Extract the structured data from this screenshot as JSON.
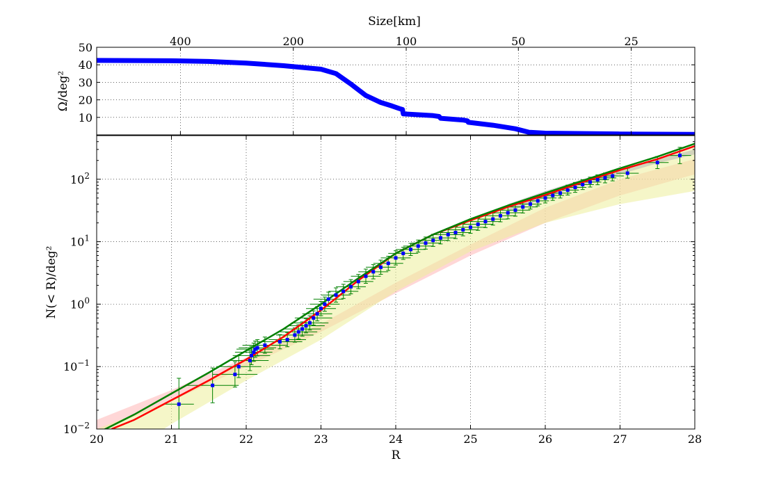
{
  "chart_data": [
    {
      "type": "line",
      "top_axis_label": "Size[km]",
      "top_tick_labels": [
        "400",
        "200",
        "100",
        "50",
        "25"
      ],
      "top_tick_positions_R": [
        21.12,
        22.63,
        24.14,
        25.64,
        27.15
      ],
      "ylabel": "Ω/deg²",
      "ylim": [
        0,
        50
      ],
      "y_ticks": [
        10,
        20,
        30,
        40,
        50
      ],
      "xlim": [
        20,
        28
      ],
      "grid": true,
      "series": [
        {
          "color": "#0000ff",
          "x": [
            20.0,
            21.0,
            21.5,
            22.0,
            22.5,
            23.0,
            23.2,
            23.4,
            23.6,
            23.8,
            23.95,
            24.05,
            24.09,
            24.1,
            24.5,
            24.58,
            24.6,
            24.9,
            24.96,
            24.97,
            25.3,
            25.6,
            25.78,
            26.0,
            27.0,
            28.0
          ],
          "y": [
            42.5,
            42.3,
            41.9,
            41.0,
            39.5,
            37.5,
            35.0,
            29.0,
            22.5,
            18.5,
            16.5,
            15.0,
            14.5,
            12.0,
            11.0,
            10.5,
            9.5,
            8.5,
            8.0,
            7.2,
            5.5,
            3.5,
            1.5,
            1.0,
            0.5,
            0.3
          ]
        }
      ]
    },
    {
      "type": "line",
      "xlabel": "R",
      "ylabel": "N(< R)/deg²",
      "xlim": [
        20,
        28
      ],
      "ylim": [
        0.01,
        500
      ],
      "yscale": "log",
      "x_ticks": [
        "20",
        "21",
        "22",
        "23",
        "24",
        "25",
        "26",
        "27",
        "28"
      ],
      "y_ticks": [
        0.01,
        0.1,
        1,
        10,
        100
      ],
      "y_tick_mantissa": "10",
      "y_tick_exponents": [
        "−2",
        "−1",
        "0",
        "1",
        "2"
      ],
      "grid": true,
      "bands": [
        {
          "color": "#ffb6b6",
          "opacity": 0.55,
          "x": [
            20,
            21,
            22,
            23,
            24,
            25,
            26,
            27,
            28
          ],
          "lower": [
            0.009,
            0.028,
            0.1,
            0.36,
            1.5,
            6,
            20,
            55,
            120
          ],
          "upper": [
            0.014,
            0.042,
            0.14,
            0.48,
            2.2,
            9,
            35,
            100,
            210
          ]
        },
        {
          "color": "#ecee9a",
          "opacity": 0.55,
          "x": [
            20,
            21,
            22,
            23,
            24,
            25,
            26,
            27,
            28
          ],
          "lower": [
            0.002,
            0.012,
            0.06,
            0.27,
            1.6,
            7,
            20,
            40,
            65
          ]
        },
        {
          "color": "#aaaaaa",
          "opacity": 0.45,
          "x": [
            25.5,
            26,
            26.5,
            27,
            27.5,
            28
          ],
          "lower": [
            30,
            50,
            80,
            120,
            180,
            250
          ],
          "upper": [
            40,
            65,
            100,
            150,
            210,
            300
          ]
        }
      ],
      "series": [
        {
          "color": "#ff0000",
          "x": [
            20.2,
            20.5,
            21.0,
            21.5,
            22.0,
            22.5,
            23.0,
            23.5,
            24.0,
            24.5,
            25.0,
            25.5,
            26.0,
            26.5,
            27.0,
            27.5,
            28.0
          ],
          "y": [
            0.01,
            0.014,
            0.029,
            0.06,
            0.13,
            0.3,
            0.8,
            2.4,
            6.5,
            13,
            22,
            36,
            56,
            90,
            140,
            210,
            340
          ]
        },
        {
          "color": "#008000",
          "x": [
            20.0,
            20.5,
            21.0,
            21.5,
            22.0,
            22.5,
            23.0,
            23.5,
            24.0,
            24.5,
            25.0,
            25.5,
            26.0,
            26.5,
            27.0,
            27.5,
            28.0
          ],
          "y": [
            0.0085,
            0.017,
            0.037,
            0.08,
            0.18,
            0.4,
            1.0,
            2.6,
            6.5,
            13,
            23,
            38,
            60,
            95,
            150,
            230,
            370
          ]
        }
      ],
      "points": {
        "color": "#0000ff",
        "errorbar_color": "#008000",
        "x": [
          21.1,
          21.55,
          21.85,
          21.9,
          22.05,
          22.07,
          22.1,
          22.12,
          22.15,
          22.25,
          22.45,
          22.55,
          22.65,
          22.7,
          22.75,
          22.8,
          22.85,
          22.9,
          22.95,
          23.0,
          23.05,
          23.1,
          23.2,
          23.3,
          23.4,
          23.5,
          23.6,
          23.7,
          23.8,
          23.9,
          24.0,
          24.1,
          24.2,
          24.3,
          24.4,
          24.5,
          24.6,
          24.7,
          24.8,
          24.9,
          25.0,
          25.1,
          25.2,
          25.3,
          25.4,
          25.5,
          25.6,
          25.7,
          25.8,
          25.9,
          26.0,
          26.1,
          26.2,
          26.3,
          26.4,
          26.5,
          26.6,
          26.7,
          26.8,
          26.9,
          27.1,
          27.5,
          27.8
        ],
        "y": [
          0.025,
          0.05,
          0.075,
          0.1,
          0.125,
          0.15,
          0.17,
          0.19,
          0.2,
          0.22,
          0.25,
          0.27,
          0.32,
          0.36,
          0.4,
          0.45,
          0.5,
          0.6,
          0.7,
          0.85,
          1.0,
          1.2,
          1.4,
          1.6,
          1.9,
          2.3,
          2.8,
          3.3,
          3.9,
          4.5,
          5.5,
          6.5,
          7.5,
          8.5,
          9.5,
          10.5,
          11.5,
          13,
          14,
          15.5,
          17,
          19,
          21,
          23,
          26,
          29,
          32,
          36,
          40,
          45,
          50,
          55,
          60,
          67,
          74,
          82,
          90,
          98,
          105,
          113,
          125,
          185,
          240
        ],
        "xerr": [
          0.2,
          0.35,
          0.3,
          0.3,
          0.25,
          0.25,
          0.25,
          0.25,
          0.25,
          0.3,
          0.3,
          0.25,
          0.25,
          0.25,
          0.25,
          0.25,
          0.25,
          0.25,
          0.2,
          0.2,
          0.2,
          0.2,
          0.2,
          0.2,
          0.2,
          0.2,
          0.2,
          0.2,
          0.2,
          0.2,
          0.2,
          0.2,
          0.2,
          0.2,
          0.2,
          0.2,
          0.2,
          0.2,
          0.2,
          0.2,
          0.2,
          0.2,
          0.2,
          0.2,
          0.2,
          0.2,
          0.2,
          0.2,
          0.15,
          0.15,
          0.15,
          0.15,
          0.15,
          0.15,
          0.15,
          0.15,
          0.15,
          0.15,
          0.15,
          0.15,
          0.15,
          0.15,
          0.15
        ],
        "yerr_factor": [
          2.6,
          1.9,
          1.6,
          1.5,
          1.45,
          1.4,
          1.4,
          1.35,
          1.35,
          1.35,
          1.3,
          1.3,
          1.3,
          1.3,
          1.3,
          1.3,
          1.3,
          1.3,
          1.3,
          1.3,
          1.3,
          1.3,
          1.3,
          1.3,
          1.3,
          1.3,
          1.3,
          1.3,
          1.3,
          1.3,
          1.3,
          1.25,
          1.25,
          1.25,
          1.25,
          1.25,
          1.25,
          1.25,
          1.25,
          1.25,
          1.25,
          1.25,
          1.25,
          1.25,
          1.25,
          1.25,
          1.25,
          1.25,
          1.2,
          1.2,
          1.2,
          1.2,
          1.2,
          1.2,
          1.2,
          1.2,
          1.2,
          1.2,
          1.2,
          1.2,
          1.2,
          1.25,
          1.35
        ]
      }
    }
  ]
}
